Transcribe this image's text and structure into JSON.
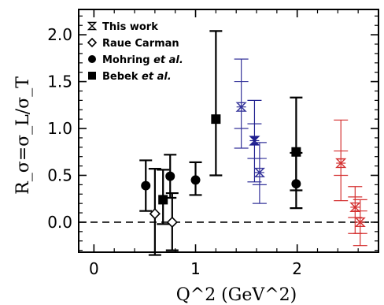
{
  "chart_data": {
    "type": "scatter",
    "xlabel": "Q^2 (GeV^2)",
    "ylabel": "R_σ=σ_L/σ_T",
    "xlim": [
      -0.15,
      2.8
    ],
    "ylim": [
      -0.32,
      2.27
    ],
    "x_ticks": [
      {
        "value": 0,
        "label": "0"
      },
      {
        "value": 1,
        "label": "1"
      },
      {
        "value": 2,
        "label": "2"
      }
    ],
    "y_ticks": [
      {
        "value": 0.0,
        "label": "0.0"
      },
      {
        "value": 0.5,
        "label": "0.5"
      },
      {
        "value": 1.0,
        "label": "1.0"
      },
      {
        "value": 1.5,
        "label": "1.5"
      },
      {
        "value": 2.0,
        "label": "2.0"
      }
    ],
    "reference_line": {
      "y": 0,
      "style": "dashed"
    },
    "legend": {
      "placement": "top-left",
      "entries": [
        {
          "label": "This work",
          "marker": "hourglass-box"
        },
        {
          "label": "Raue Carman",
          "marker": "open-diamond"
        },
        {
          "label": "Mohring",
          "label_suffix": "et al.",
          "marker": "filled-circle"
        },
        {
          "label": "Bebek",
          "label_suffix": "et al.",
          "marker": "filled-square"
        }
      ]
    },
    "series": [
      {
        "name": "This work",
        "marker": "hourglass-box",
        "points": [
          {
            "x": 1.45,
            "y": 1.23,
            "yerr_low": 0.79,
            "yerr_high": 1.74,
            "ystat_low": 1.0,
            "ystat_high": 1.5,
            "color": "#34339a",
            "style": "open"
          },
          {
            "x": 1.58,
            "y": 0.87,
            "yerr_low": 0.43,
            "yerr_high": 1.3,
            "ystat_low": 0.68,
            "ystat_high": 1.05,
            "color": "#1f1f8f",
            "style": "filled"
          },
          {
            "x": 1.63,
            "y": 0.53,
            "yerr_low": 0.2,
            "yerr_high": 0.85,
            "ystat_low": 0.4,
            "ystat_high": 0.68,
            "color": "#34339a",
            "style": "open"
          },
          {
            "x": 2.43,
            "y": 0.63,
            "yerr_low": 0.23,
            "yerr_high": 1.09,
            "ystat_low": 0.5,
            "ystat_high": 0.76,
            "color": "#d43030",
            "style": "open"
          },
          {
            "x": 2.57,
            "y": 0.16,
            "yerr_low": -0.12,
            "yerr_high": 0.38,
            "ystat_low": 0.05,
            "ystat_high": 0.27,
            "color": "#d43030",
            "style": "open"
          },
          {
            "x": 2.62,
            "y": 0.0,
            "yerr_low": -0.25,
            "yerr_high": 0.24,
            "ystat_low": -0.12,
            "ystat_high": 0.12,
            "color": "#d43030",
            "style": "open"
          }
        ]
      },
      {
        "name": "Raue Carman",
        "marker": "open-diamond",
        "points": [
          {
            "x": 0.6,
            "y": 0.09,
            "yerr_low": -0.35,
            "yerr_high": 0.57
          },
          {
            "x": 0.77,
            "y": 0.0,
            "yerr_low": -0.3,
            "yerr_high": 0.31
          }
        ]
      },
      {
        "name": "Mohring et al.",
        "marker": "filled-circle",
        "points": [
          {
            "x": 0.51,
            "y": 0.39,
            "yerr_low": 0.12,
            "yerr_high": 0.66
          },
          {
            "x": 0.75,
            "y": 0.49,
            "yerr_low": 0.26,
            "yerr_high": 0.72
          },
          {
            "x": 1.0,
            "y": 0.45,
            "yerr_low": 0.29,
            "yerr_high": 0.64
          },
          {
            "x": 1.99,
            "y": 0.41,
            "yerr_low": 0.15,
            "yerr_high": 0.74
          }
        ]
      },
      {
        "name": "Bebek et al.",
        "marker": "filled-square",
        "points": [
          {
            "x": 0.68,
            "y": 0.24,
            "yerr_low": -0.02,
            "yerr_high": 0.56
          },
          {
            "x": 1.2,
            "y": 1.1,
            "yerr_low": 0.5,
            "yerr_high": 2.04
          },
          {
            "x": 1.99,
            "y": 0.75,
            "yerr_low": 0.34,
            "yerr_high": 1.33
          }
        ]
      }
    ]
  }
}
